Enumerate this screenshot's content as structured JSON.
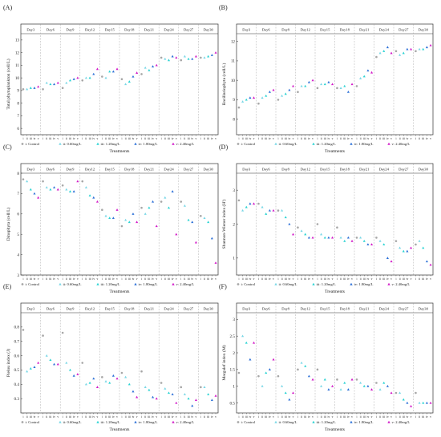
{
  "figure": {
    "days": [
      "Day3",
      "Day6",
      "Day9",
      "Day12",
      "Day15",
      "Day18",
      "Day21",
      "Day24",
      "Day27",
      "Day30"
    ],
    "treatment_ticks": [
      "i",
      "ii",
      "iii",
      "iv",
      "v"
    ],
    "xlabel": "Treatments",
    "legend": [
      {
        "label": "i: Control",
        "color": "#a6a6a6",
        "marker": "circle"
      },
      {
        "label": "ii: 0.60mg/L",
        "color": "#79d7e6",
        "marker": "triangle"
      },
      {
        "label": "iii: 1.20mg/L",
        "color": "#2bd3d3",
        "marker": "triangle"
      },
      {
        "label": "iv: 1.80mg/L",
        "color": "#2f72d8",
        "marker": "triangle"
      },
      {
        "label": "v: 2.40mg/L",
        "color": "#d21cc8",
        "marker": "triangle"
      }
    ]
  },
  "chart_data": [
    {
      "panel": "(A)",
      "type": "scatter",
      "ylabel": "Total phytoplankton (cell/L)",
      "ylim": [
        5.5,
        13.5
      ],
      "yticks": [
        6,
        7,
        8,
        9,
        10,
        11,
        12,
        13
      ],
      "series": [
        {
          "name": "i: Control",
          "values": [
            9.1,
            9.1,
            9.2,
            9.8,
            10.1,
            9.9,
            10.3,
            11.6,
            11.4,
            11.6
          ]
        },
        {
          "name": "ii: 0.60mg/L",
          "values": [
            9.1,
            9.6,
            9.6,
            10.0,
            10.0,
            9.5,
            10.8,
            11.5,
            11.7,
            11.6
          ]
        },
        {
          "name": "iii: 1.20mg/L",
          "values": [
            9.2,
            9.5,
            9.8,
            10.0,
            10.5,
            9.7,
            10.6,
            11.4,
            11.5,
            11.7
          ]
        },
        {
          "name": "iv: 1.80mg/L",
          "values": [
            9.2,
            9.5,
            9.9,
            10.3,
            10.5,
            10.1,
            10.9,
            11.7,
            11.5,
            11.8
          ]
        },
        {
          "name": "v: 2.40mg/L",
          "values": [
            9.3,
            9.6,
            10.0,
            10.7,
            10.7,
            10.4,
            11.0,
            11.6,
            11.7,
            12.0
          ]
        }
      ]
    },
    {
      "panel": "(B)",
      "type": "scatter",
      "ylabel": "Bacillariophyta (cell/L)",
      "ylim": [
        7.2,
        12.4
      ],
      "yticks": [
        8,
        9,
        10,
        11,
        12
      ],
      "series": [
        {
          "name": "i: Control",
          "values": [
            8.6,
            8.8,
            9.0,
            9.4,
            9.6,
            9.6,
            9.7,
            11.2,
            11.5,
            11.5
          ]
        },
        {
          "name": "ii: 0.60mg/L",
          "values": [
            8.9,
            9.1,
            9.2,
            9.7,
            9.8,
            9.6,
            10.1,
            11.4,
            11.3,
            11.6
          ]
        },
        {
          "name": "iii: 1.20mg/L",
          "values": [
            9.0,
            9.2,
            9.3,
            9.7,
            9.8,
            9.7,
            10.2,
            11.5,
            11.4,
            11.6
          ]
        },
        {
          "name": "iv: 1.80mg/L",
          "values": [
            9.1,
            9.4,
            9.5,
            9.9,
            9.9,
            9.4,
            10.5,
            11.7,
            11.6,
            11.7
          ]
        },
        {
          "name": "v: 2.40mg/L",
          "values": [
            9.1,
            9.5,
            9.7,
            10.0,
            9.8,
            9.8,
            10.4,
            11.4,
            11.6,
            11.8
          ]
        }
      ]
    },
    {
      "panel": "(C)",
      "type": "scatter",
      "ylabel": "Dinophyta (cell/L)",
      "ylim": [
        3.0,
        8.0
      ],
      "yticks": [
        3,
        4,
        5,
        6,
        7,
        8
      ],
      "series": [
        {
          "name": "i: Control",
          "values": [
            7.7,
            7.6,
            7.4,
            7.6,
            6.2,
            5.4,
            6.3,
            6.6,
            6.6,
            5.9
          ]
        },
        {
          "name": "ii: 0.60mg/L",
          "values": [
            7.6,
            7.3,
            7.2,
            7.3,
            5.9,
            5.7,
            6.0,
            6.8,
            6.4,
            5.8
          ]
        },
        {
          "name": "iii: 1.20mg/L",
          "values": [
            7.2,
            7.2,
            7.1,
            6.9,
            5.8,
            5.6,
            6.3,
            6.3,
            5.7,
            5.6
          ]
        },
        {
          "name": "iv: 1.80mg/L",
          "values": [
            7.0,
            7.3,
            7.1,
            6.8,
            5.8,
            6.0,
            6.6,
            7.1,
            5.6,
            4.8
          ]
        },
        {
          "name": "v: 2.40mg/L",
          "values": [
            6.8,
            7.2,
            7.6,
            6.6,
            6.2,
            5.6,
            5.4,
            5.0,
            4.6,
            3.6
          ]
        }
      ]
    },
    {
      "panel": "(D)",
      "type": "scatter",
      "ylabel": "Shannon-Wiener index (H')",
      "ylim": [
        0.5,
        3.5
      ],
      "yticks": [
        1,
        2,
        3
      ],
      "series": [
        {
          "name": "i: Control",
          "values": [
            2.7,
            2.6,
            2.4,
            1.9,
            2.0,
            1.9,
            1.6,
            1.6,
            1.5,
            1.4
          ]
        },
        {
          "name": "ii: 0.60mg/L",
          "values": [
            2.4,
            2.5,
            2.4,
            1.8,
            1.7,
            1.6,
            1.6,
            1.5,
            1.3,
            1.5
          ]
        },
        {
          "name": "iii: 1.20mg/L",
          "values": [
            2.5,
            2.3,
            2.2,
            1.7,
            1.6,
            1.5,
            1.5,
            1.4,
            1.2,
            1.3
          ]
        },
        {
          "name": "iv: 1.80mg/L",
          "values": [
            2.6,
            2.4,
            2.0,
            1.6,
            1.6,
            1.6,
            1.4,
            1.0,
            1.2,
            0.9
          ]
        },
        {
          "name": "v: 2.40mg/L",
          "values": [
            2.6,
            2.4,
            1.7,
            1.6,
            1.6,
            1.5,
            1.4,
            0.9,
            1.3,
            0.8
          ]
        }
      ]
    },
    {
      "panel": "(E)",
      "type": "scatter",
      "ylabel": "Pielou index (J)",
      "ylim": [
        0.2,
        0.9
      ],
      "yticks": [
        0.3,
        0.4,
        0.5,
        0.6,
        0.7,
        0.8
      ],
      "series": [
        {
          "name": "i: Control",
          "values": [
            0.78,
            0.74,
            0.76,
            0.55,
            0.45,
            0.48,
            0.49,
            0.41,
            0.38,
            0.38
          ]
        },
        {
          "name": "ii: 0.60mg/L",
          "values": [
            0.49,
            0.6,
            0.55,
            0.4,
            0.42,
            0.45,
            0.38,
            0.37,
            0.33,
            0.38
          ]
        },
        {
          "name": "iii: 1.20mg/L",
          "values": [
            0.51,
            0.57,
            0.5,
            0.41,
            0.41,
            0.4,
            0.36,
            0.34,
            0.3,
            0.33
          ]
        },
        {
          "name": "iv: 1.80mg/L",
          "values": [
            0.52,
            0.54,
            0.46,
            0.44,
            0.46,
            0.35,
            0.31,
            0.33,
            0.25,
            0.29
          ]
        },
        {
          "name": "v: 2.40mg/L",
          "values": [
            0.55,
            0.54,
            0.47,
            0.38,
            0.44,
            0.31,
            0.3,
            0.27,
            0.29,
            0.32
          ]
        }
      ]
    },
    {
      "panel": "(F)",
      "type": "scatter",
      "ylabel": "Margalef index (M)",
      "ylim": [
        0.2,
        3.2
      ],
      "yticks": [
        0.5,
        1.0,
        1.5,
        2.0,
        2.5,
        3.0
      ],
      "series": [
        {
          "name": "i: Control",
          "values": [
            1.4,
            1.3,
            1.3,
            1.5,
            1.5,
            1.2,
            1.2,
            1.1,
            0.8,
            0.8
          ]
        },
        {
          "name": "ii: 0.60mg/L",
          "values": [
            2.5,
            1.0,
            1.0,
            1.7,
            1.0,
            0.9,
            1.1,
            0.9,
            0.8,
            0.5
          ]
        },
        {
          "name": "iii: 1.20mg/L",
          "values": [
            2.3,
            1.4,
            0.8,
            1.6,
            1.2,
            1.1,
            1.0,
            1.1,
            0.6,
            0.5
          ]
        },
        {
          "name": "iv: 1.80mg/L",
          "values": [
            1.8,
            1.5,
            0.6,
            1.3,
            0.9,
            0.9,
            1.0,
            1.0,
            0.5,
            0.5
          ]
        },
        {
          "name": "v: 2.40mg/L",
          "values": [
            2.3,
            1.8,
            0.8,
            1.2,
            1.0,
            1.2,
            0.9,
            0.8,
            0.4,
            0.5
          ]
        }
      ]
    }
  ]
}
